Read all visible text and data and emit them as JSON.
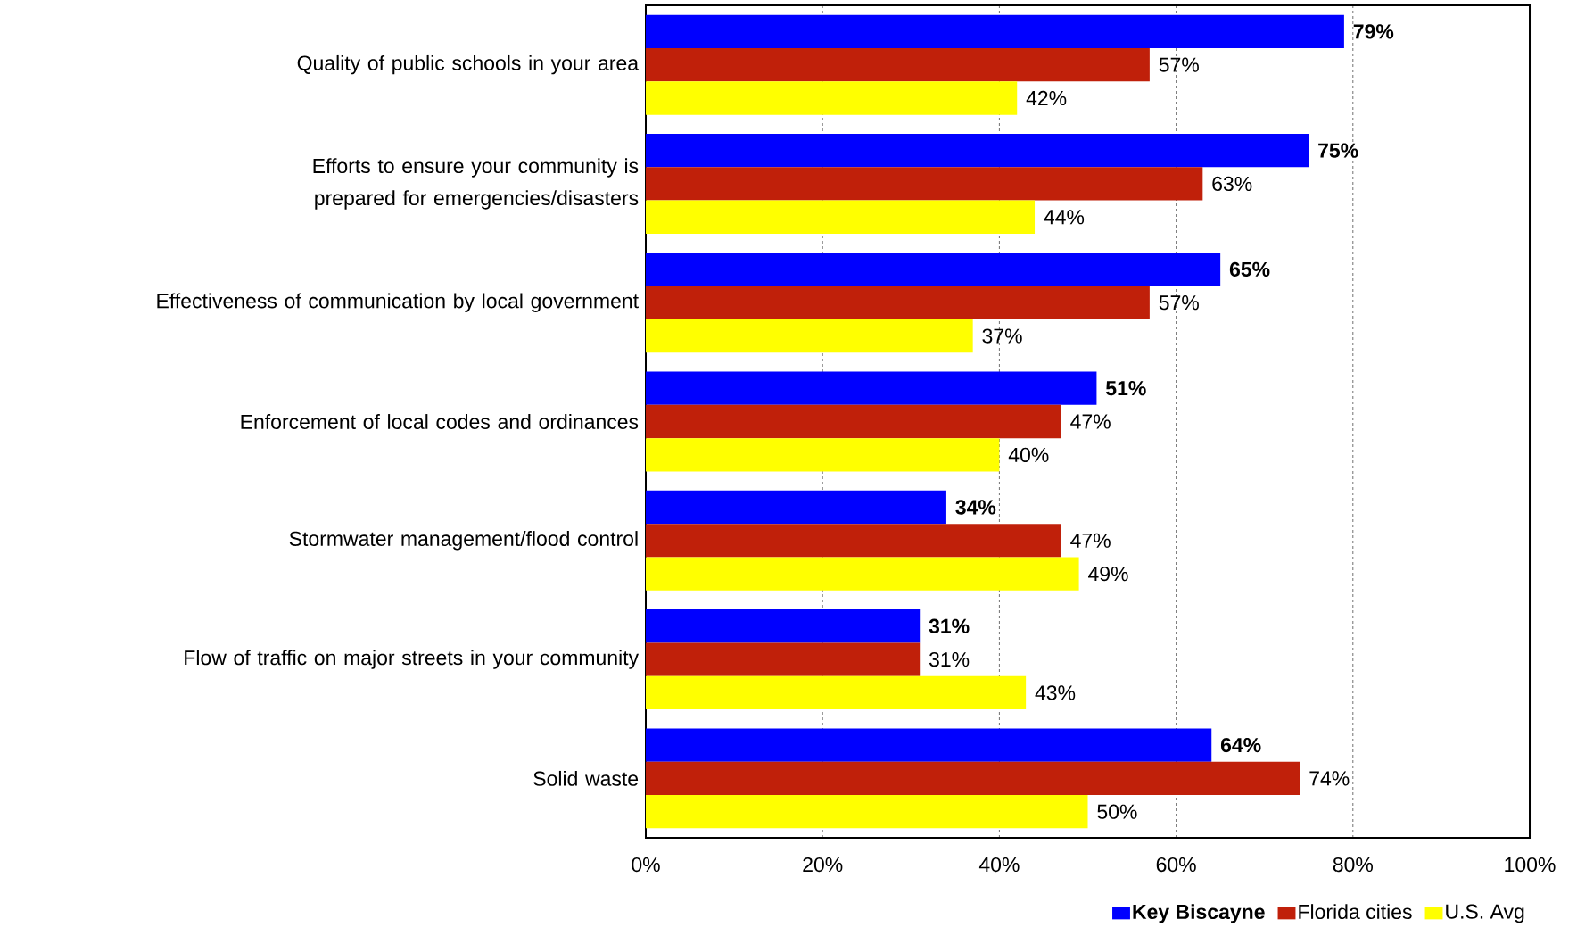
{
  "chart_data": {
    "type": "bar",
    "orientation": "horizontal",
    "categories": [
      "Quality of public schools in your area",
      "Efforts to ensure your community is prepared for emergencies/disasters",
      "Effectiveness of communication by local government",
      "Enforcement of local codes and ordinances",
      "Stormwater management/flood control",
      "Flow of traffic on major streets in your community",
      "Solid waste"
    ],
    "series": [
      {
        "name": "**Key Biscayne**",
        "color": "#0000ff",
        "values": [
          79,
          75,
          65,
          51,
          34,
          31,
          64
        ],
        "value_labels": [
          "**79%**",
          "**75%**",
          "**65%**",
          "**51%**",
          "**34%**",
          "**31%**",
          "**64%**"
        ]
      },
      {
        "name": "Florida cities",
        "color": "#c0200a",
        "values": [
          57,
          63,
          57,
          47,
          47,
          31,
          74
        ],
        "value_labels": [
          "57%",
          "63%",
          "57%",
          "47%",
          "47%",
          "31%",
          "74%"
        ]
      },
      {
        "name": "U.S. Avg",
        "color": "#ffff00",
        "values": [
          42,
          44,
          37,
          40,
          49,
          43,
          50
        ],
        "value_labels": [
          "42%",
          "44%",
          "37%",
          "40%",
          "49%",
          "43%",
          "50%"
        ]
      }
    ],
    "xlim": [
      0,
      100
    ],
    "xticks": [
      {
        "value": 0,
        "label": "0%"
      },
      {
        "value": 20,
        "label": "20%"
      },
      {
        "value": 40,
        "label": "40%"
      },
      {
        "value": 60,
        "label": "60%"
      },
      {
        "value": 80,
        "label": "80%"
      },
      {
        "value": 100,
        "label": "100%"
      }
    ],
    "grid": "x",
    "legend": "bottom right"
  }
}
